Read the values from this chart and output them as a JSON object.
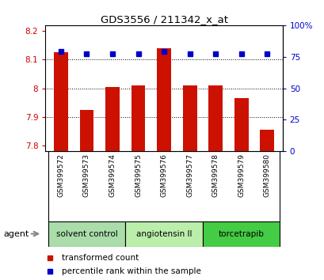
{
  "title": "GDS3556 / 211342_x_at",
  "samples": [
    "GSM399572",
    "GSM399573",
    "GSM399574",
    "GSM399575",
    "GSM399576",
    "GSM399577",
    "GSM399578",
    "GSM399579",
    "GSM399580"
  ],
  "red_values": [
    8.125,
    7.925,
    8.005,
    8.01,
    8.14,
    8.01,
    8.01,
    7.965,
    7.855
  ],
  "blue_values": [
    79,
    77,
    77,
    77,
    79,
    77,
    77,
    77,
    77
  ],
  "ylim_left": [
    7.78,
    8.22
  ],
  "ylim_right": [
    0,
    100
  ],
  "yticks_left": [
    7.8,
    7.9,
    8.0,
    8.1,
    8.2
  ],
  "yticks_right": [
    0,
    25,
    50,
    75,
    100
  ],
  "groups": [
    {
      "label": "solvent control",
      "samples": [
        0,
        1,
        2
      ],
      "color": "#aaddaa"
    },
    {
      "label": "angiotensin II",
      "samples": [
        3,
        4,
        5
      ],
      "color": "#bbeeaa"
    },
    {
      "label": "torcetrapib",
      "samples": [
        6,
        7,
        8
      ],
      "color": "#44cc44"
    }
  ],
  "bar_color": "#cc1100",
  "dot_color": "#0000cc",
  "background_color": "#ffffff",
  "tick_area_color": "#cccccc",
  "legend_red_label": "transformed count",
  "legend_blue_label": "percentile rank within the sample",
  "agent_label": "agent"
}
